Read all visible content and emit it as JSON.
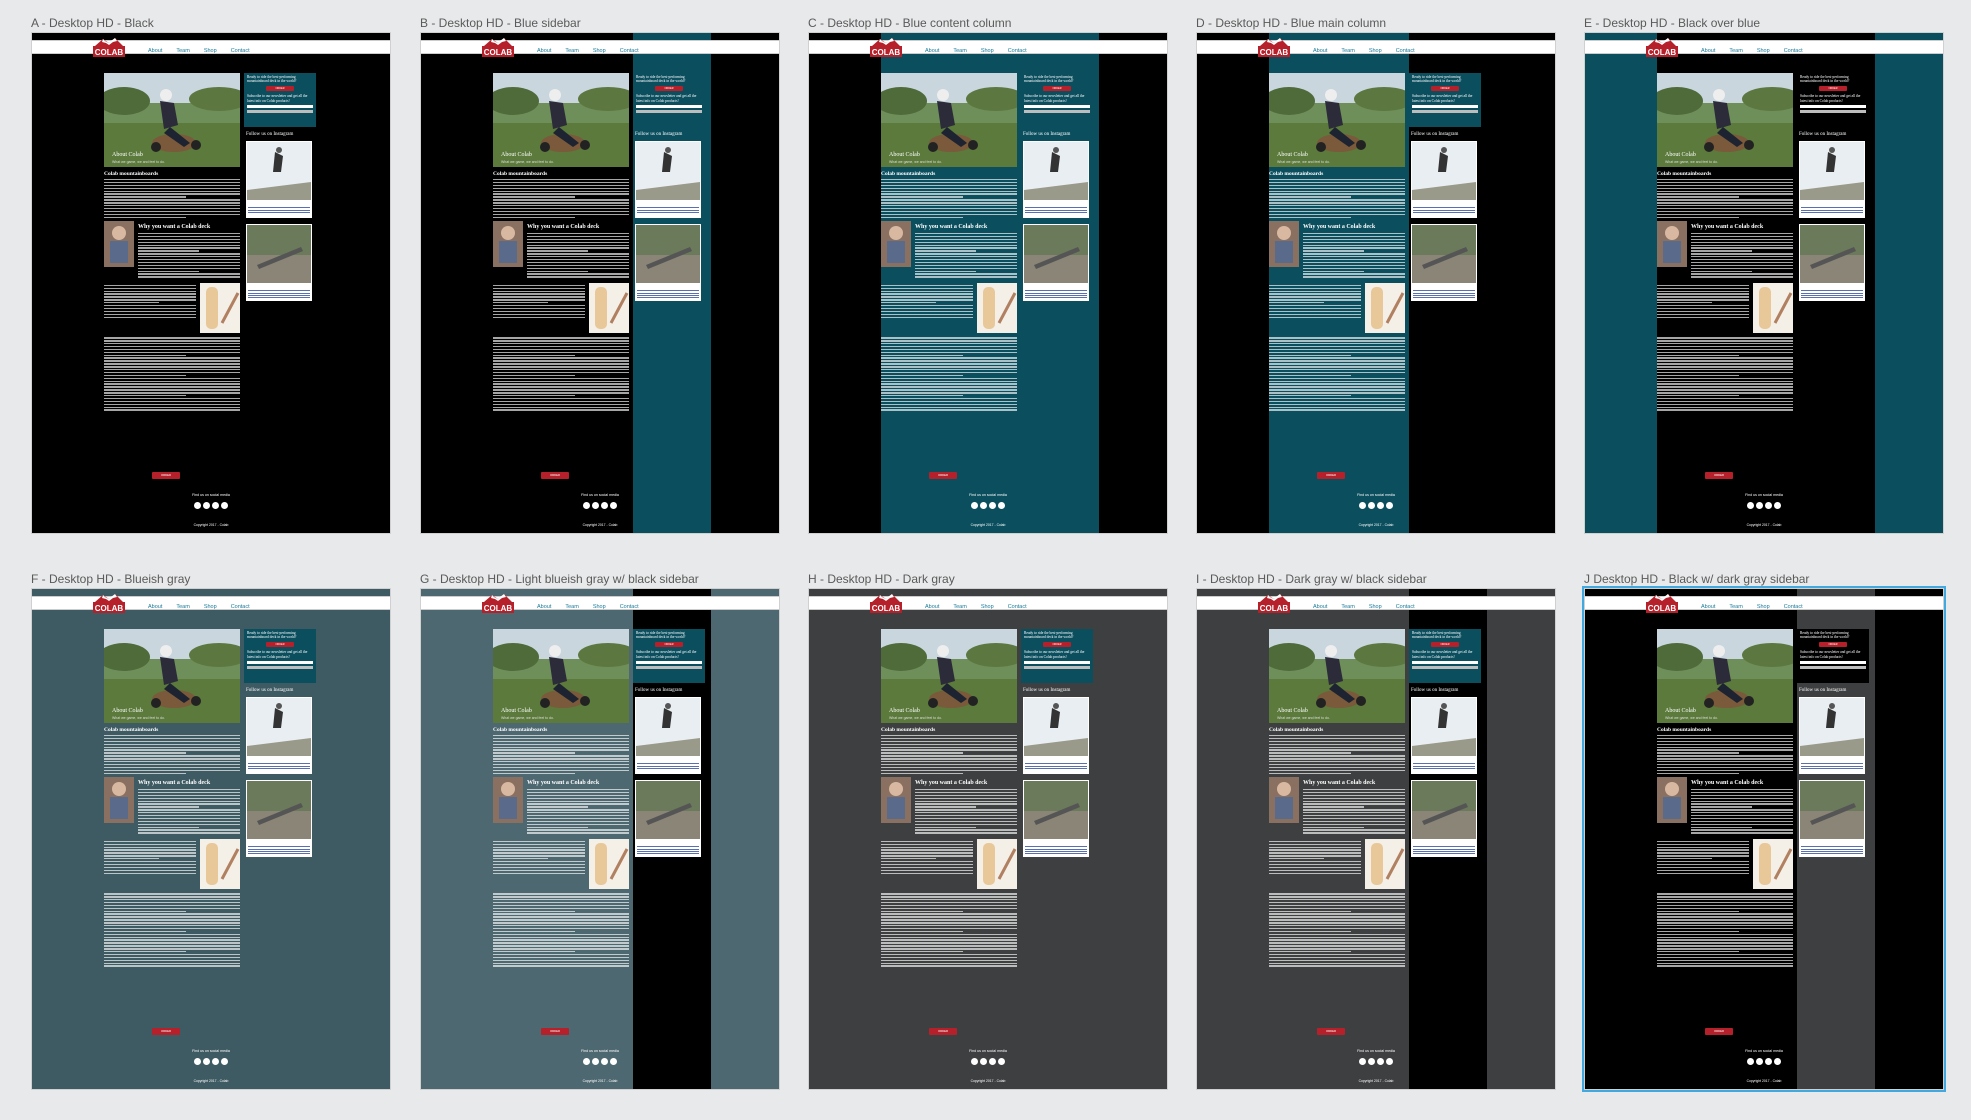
{
  "site": {
    "logo_text": "COLAB",
    "nav": [
      "About",
      "Team",
      "Shop",
      "Contact"
    ],
    "hero_title": "About Colab",
    "hero_subtitle": "What we game, we and feel to do.",
    "heading": "Colab mountainboards",
    "subheading": "Why you want a Colab deck",
    "side_cta": "Ready to ride the best-performing mountainboard deck in the world?",
    "side_button": "ORDER",
    "newsletter": "Subscribe to our newsletter and get all the latest info on Colab products!",
    "instagram": "Follow us on Instagram",
    "main_button": "ORDER",
    "social": "Find us on social media",
    "copyright": "Copyright 2017 - Colab",
    "colors": {
      "red": "#b5202a",
      "link": "#1a7a9a",
      "selection": "#41a8e0"
    }
  },
  "variants": [
    {
      "label": "A - Desktop HD - Black",
      "page": "#000000",
      "column": "#000000",
      "side": "#000000",
      "sidebox": "#0b4e5e",
      "text": "#ffffff",
      "selected": false
    },
    {
      "label": "B - Desktop HD - Blue sidebar",
      "page": "#000000",
      "column": "#000000",
      "side": "#0b4e5e",
      "sidebox": "#0b4e5e",
      "text": "#ffffff",
      "selected": false
    },
    {
      "label": "C - Desktop HD - Blue content column",
      "page": "#000000",
      "column": "#0b4e5e",
      "side": "#0b4e5e",
      "sidebox": "#0b4e5e",
      "text": "#ffffff",
      "selected": false
    },
    {
      "label": "D - Desktop HD - Blue main column",
      "page": "#000000",
      "column": "#0b4e5e",
      "side": "#000000",
      "sidebox": "#0b4e5e",
      "text": "#ffffff",
      "selected": false
    },
    {
      "label": "E - Desktop HD - Black over blue",
      "page": "#0b4e5e",
      "column": "#000000",
      "side": "#000000",
      "sidebox": "#000000",
      "text": "#ffffff",
      "selected": false
    },
    {
      "label": "F - Desktop HD - Blueish gray",
      "page": "#3e5a63",
      "column": "#3e5a63",
      "side": "#3e5a63",
      "sidebox": "#0b4e5e",
      "text": "#ffffff",
      "selected": false
    },
    {
      "label": "G - Desktop HD - Light blueish gray w/ black sidebar",
      "page": "#4e6871",
      "column": "#4e6871",
      "side": "#000000",
      "sidebox": "#0b4e5e",
      "text": "#ffffff",
      "selected": false
    },
    {
      "label": "H - Desktop HD - Dark gray",
      "page": "#3d3f40",
      "column": "#3d3f40",
      "side": "#3d3f40",
      "sidebox": "#0b4e5e",
      "text": "#ffffff",
      "selected": false
    },
    {
      "label": "I - Desktop HD - Dark gray w/ black sidebar",
      "page": "#3d3f40",
      "column": "#3d3f40",
      "side": "#000000",
      "sidebox": "#0b4e5e",
      "text": "#ffffff",
      "selected": false
    },
    {
      "label": "J Desktop HD - Black w/ dark gray sidebar",
      "page": "#000000",
      "column": "#000000",
      "side": "#3d3f40",
      "sidebox": "#000000",
      "text": "#ffffff",
      "selected": true
    }
  ]
}
